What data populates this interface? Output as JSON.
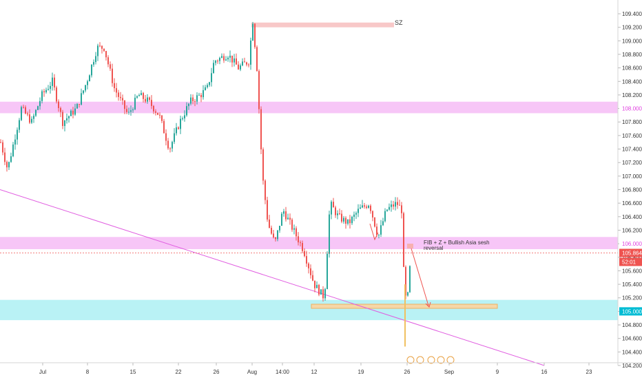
{
  "chart_data": {
    "type": "candlestick",
    "title": "",
    "y_ticks": [
      "109.400",
      "109.200",
      "109.000",
      "108.800",
      "108.600",
      "108.400",
      "108.200",
      "108.000",
      "107.800",
      "107.600",
      "107.400",
      "107.200",
      "107.000",
      "106.800",
      "106.600",
      "106.400",
      "106.200",
      "106.000",
      "105.800",
      "105.600",
      "105.400",
      "105.200",
      "105.000",
      "104.800",
      "104.600",
      "104.400",
      "104.200"
    ],
    "ylim": [
      104.2,
      109.5
    ],
    "x_ticks": [
      "Jul",
      "8",
      "15",
      "22",
      "26",
      "Aug",
      "14:00",
      "12",
      "19",
      "26",
      "Sep",
      "9",
      "16",
      "23"
    ],
    "price_labels": {
      "zone_high": "108.000",
      "zone_mid": "106.000",
      "zone_low": "105.000",
      "current_price": "105.864",
      "countdown": "52:01"
    },
    "annotations": {
      "supply": "SZ",
      "setup": "FIB + Z + Bullish Asia sesh",
      "setup_line2": "reversal"
    },
    "zones": [
      {
        "name": "resistance-108",
        "from": 107.93,
        "to": 108.1
      },
      {
        "name": "resistance-106",
        "from": 105.92,
        "to": 106.1
      },
      {
        "name": "support-105",
        "from": 104.87,
        "to": 105.17
      },
      {
        "name": "supply-sz",
        "from": 109.2,
        "to": 109.27
      }
    ],
    "trendline": {
      "start": 106.8,
      "end": 104.2
    },
    "colors": {
      "up": "#26a69a",
      "down": "#ef5350",
      "zone_pink": "#f7c6f7",
      "zone_cyan": "#b9f2f5",
      "zone_sz": "#f8c8c8",
      "trend": "#e05ce0",
      "label_pink": "#e040e0",
      "label_cyan": "#00bcd4",
      "label_red": "#ef5350",
      "wick": "#37474f"
    }
  }
}
